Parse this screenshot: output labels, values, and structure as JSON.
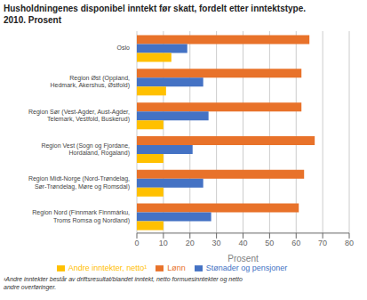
{
  "chart_data": {
    "type": "bar",
    "orientation": "horizontal",
    "title": "Husholdningenes disponibel inntekt før skatt, fordelt etter inntektstype.\n2010. Prosent",
    "categories": [
      "Oslo",
      "Region Øst (Oppland,\nHedmark, Akershus, Østfold)",
      "Region Sør (Vest-Agder, Aust-Agder,\nTelemark, Vestfold, Buskerud)",
      "Region Vest (Sogn og Fjordane,\nHordaland, Rogaland)",
      "Region Midt-Norge (Nord-Trøndelag,\nSør-Trøndelag, Møre og Romsdal)",
      "Region Nord (Finnmark Finnmárku,\nTroms Romsa og Nordland)"
    ],
    "series": [
      {
        "name": "Lønn",
        "color": "#E8722A",
        "values": [
          65,
          62,
          62,
          67,
          63,
          61
        ]
      },
      {
        "name": "Stønader og pensjoner",
        "color": "#4472C4",
        "values": [
          19,
          25,
          27,
          21,
          25,
          28
        ]
      },
      {
        "name": "Andre inntekter, netto¹",
        "color": "#FFC000",
        "values": [
          13,
          11,
          10,
          10,
          10,
          10
        ]
      }
    ],
    "xlabel": "Prosent",
    "xlim": [
      0,
      80
    ],
    "xticks": [
      0,
      10,
      20,
      30,
      40,
      50,
      60,
      70,
      80
    ],
    "grid": true,
    "legend": "bottom",
    "annotations": [
      "¹Andre inntekter består av driftsresultat/blandet inntekt, netto formuesinntekter og netto\nandre overføringer."
    ]
  }
}
